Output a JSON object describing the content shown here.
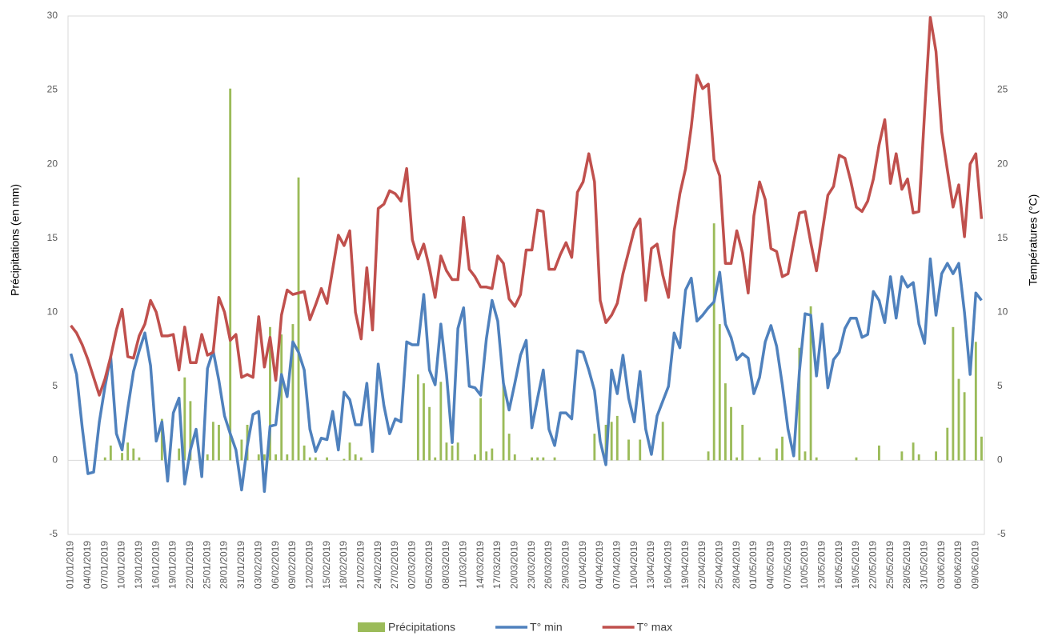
{
  "chart_data": {
    "type": "bar-line",
    "y_label": "Précipitations (en mm)",
    "y2_label": "Températures (°C)",
    "ylim": [
      -5,
      30
    ],
    "yticks": [
      -5,
      0,
      5,
      10,
      15,
      20,
      25,
      30
    ],
    "y2lim": [
      -5,
      30
    ],
    "y2ticks": [
      -5,
      0,
      5,
      10,
      15,
      20,
      25,
      30
    ],
    "categories": [
      "01/01/2019",
      null,
      null,
      "04/01/2019",
      null,
      null,
      "07/01/2019",
      null,
      null,
      "10/01/2019",
      null,
      null,
      "13/01/2019",
      null,
      null,
      "16/01/2019",
      null,
      null,
      "19/01/2019",
      null,
      null,
      "22/01/2019",
      null,
      null,
      "25/01/2019",
      null,
      null,
      "28/01/2019",
      null,
      null,
      "31/01/2019",
      null,
      null,
      "03/02/2019",
      null,
      null,
      "06/02/2019",
      null,
      null,
      "09/02/2019",
      null,
      null,
      "12/02/2019",
      null,
      null,
      "15/02/2019",
      null,
      null,
      "18/02/2019",
      null,
      null,
      "21/02/2019",
      null,
      null,
      "24/02/2019",
      null,
      null,
      "27/02/2019",
      null,
      null,
      "02/03/2019",
      null,
      null,
      "05/03/2019",
      null,
      null,
      "08/03/2019",
      null,
      null,
      "11/03/2019",
      null,
      null,
      "14/03/2019",
      null,
      null,
      "17/03/2019",
      null,
      null,
      "20/03/2019",
      null,
      null,
      "23/03/2019",
      null,
      null,
      "26/03/2019",
      null,
      null,
      "29/03/2019",
      null,
      null,
      "01/04/2019",
      null,
      null,
      "04/04/2019",
      null,
      null,
      "07/04/2019",
      null,
      null,
      "10/04/2019",
      null,
      null,
      "13/04/2019",
      null,
      null,
      "16/04/2019",
      null,
      null,
      "19/04/2019",
      null,
      null,
      "22/04/2019",
      null,
      null,
      "25/04/2019",
      null,
      null,
      "28/04/2019",
      null,
      null,
      "01/05/2019",
      null,
      null,
      "04/05/2019",
      null,
      null,
      "07/05/2019",
      null,
      null,
      "10/05/2019",
      null,
      null,
      "13/05/2019",
      null,
      null,
      "16/05/2019",
      null,
      null,
      "19/05/2019",
      null,
      null,
      "22/05/2019",
      null,
      null,
      "25/05/2019",
      null,
      null,
      "28/05/2019",
      null,
      null,
      "31/05/2019",
      null,
      null,
      "03/06/2019",
      null,
      null,
      "06/06/2019",
      null,
      null,
      "09/06/2019",
      null
    ],
    "series": [
      {
        "name": "Précipitations",
        "kind": "bar",
        "color": "#9bbb59",
        "values": [
          0,
          0,
          0,
          0,
          0,
          0,
          0.2,
          1.0,
          0,
          0.5,
          1.2,
          0.8,
          0.2,
          0,
          0,
          0,
          2.8,
          0,
          0,
          0.8,
          5.6,
          4.0,
          0,
          0,
          0.4,
          2.6,
          2.4,
          0,
          25.1,
          0,
          1.4,
          2.4,
          0,
          0.4,
          0.4,
          9.0,
          0.4,
          8.5,
          0.4,
          9.2,
          19.1,
          1.0,
          0.2,
          0.2,
          0,
          0.2,
          0,
          0,
          0.1,
          1.2,
          0.4,
          0.2,
          0,
          0,
          0,
          0,
          0,
          0,
          0,
          0,
          0,
          5.8,
          5.2,
          3.6,
          0.2,
          5.3,
          1.2,
          1.0,
          1.2,
          0,
          0,
          0.4,
          4.2,
          0.6,
          0.8,
          0,
          5.2,
          1.8,
          0.4,
          0,
          0,
          0.2,
          0.2,
          0.2,
          0,
          0.2,
          0,
          0,
          0,
          0,
          0,
          0,
          1.8,
          0,
          2.4,
          2.6,
          3.0,
          0,
          1.4,
          0,
          1.4,
          0,
          0,
          0,
          2.6,
          0,
          0,
          0,
          0,
          0,
          0,
          0,
          0.6,
          16.0,
          9.2,
          5.2,
          3.6,
          0.2,
          2.4,
          0,
          0,
          0.2,
          0,
          0,
          0.8,
          1.6,
          0,
          0,
          7.6,
          0.6,
          10.4,
          0.2,
          0,
          0,
          0,
          0,
          0,
          0,
          0.2,
          0,
          0,
          0,
          1.0,
          0,
          0,
          0,
          0.6,
          0,
          1.2,
          0.4,
          0,
          0,
          0.6,
          0,
          2.2,
          9.0,
          5.5,
          4.6,
          0,
          8.0,
          1.6
        ]
      },
      {
        "name": "T° min",
        "kind": "line",
        "axis": "y2",
        "color": "#4f81bd",
        "values": [
          7.2,
          5.8,
          2.2,
          -0.9,
          -0.8,
          2.6,
          5.0,
          7.0,
          1.8,
          0.7,
          3.5,
          6.0,
          7.4,
          8.6,
          6.4,
          1.3,
          2.6,
          -1.4,
          3.2,
          4.2,
          -1.6,
          0.7,
          2.1,
          -1.1,
          6.2,
          7.4,
          5.4,
          3.0,
          1.8,
          0.7,
          -2.0,
          1.0,
          3.1,
          3.3,
          -2.1,
          2.3,
          2.4,
          5.8,
          4.3,
          8.0,
          7.3,
          6.1,
          2.1,
          0.6,
          1.5,
          1.4,
          3.3,
          0.7,
          4.6,
          4.1,
          2.4,
          2.4,
          5.2,
          0.6,
          6.5,
          3.7,
          1.8,
          2.8,
          2.6,
          8.0,
          7.8,
          7.8,
          11.2,
          6.1,
          5.1,
          9.2,
          5.8,
          1.2,
          8.9,
          10.3,
          5.0,
          4.9,
          4.4,
          8.2,
          10.8,
          9.4,
          5.2,
          3.4,
          5.2,
          7.1,
          8.1,
          2.2,
          4.2,
          6.1,
          2.1,
          1.0,
          3.2,
          3.2,
          2.8,
          7.4,
          7.3,
          6.1,
          4.7,
          1.3,
          -0.3,
          6.1,
          4.5,
          7.1,
          4.2,
          2.6,
          6.0,
          2.1,
          0.4,
          3.0,
          4.0,
          5.0,
          8.6,
          7.6,
          11.5,
          12.3,
          9.4,
          9.8,
          10.3,
          10.7,
          12.7,
          9.2,
          8.3,
          6.8,
          7.2,
          6.9,
          4.5,
          5.6,
          8.0,
          9.1,
          7.7,
          5.1,
          2.1,
          0.3,
          6.0,
          9.9,
          9.8,
          5.7,
          9.2,
          4.9,
          6.8,
          7.3,
          8.9,
          9.6,
          9.6,
          8.3,
          8.5,
          11.4,
          10.8,
          9.3,
          12.4,
          9.6,
          12.4,
          11.7,
          12.0,
          9.2,
          7.9,
          13.6,
          9.8,
          12.6,
          13.3,
          12.6,
          13.3,
          10.0,
          5.8,
          11.3,
          10.8
        ]
      },
      {
        "name": "T° max",
        "kind": "line",
        "axis": "y2",
        "color": "#c0504d",
        "values": [
          9.1,
          8.6,
          7.8,
          6.8,
          5.6,
          4.4,
          5.5,
          7.0,
          8.8,
          10.2,
          7.0,
          6.9,
          8.4,
          9.2,
          10.8,
          10.0,
          8.4,
          8.4,
          8.5,
          6.1,
          9.0,
          6.6,
          6.6,
          8.5,
          7.1,
          7.3,
          11.0,
          10.0,
          8.1,
          8.5,
          5.6,
          5.8,
          5.6,
          9.7,
          6.3,
          8.3,
          5.4,
          9.8,
          11.5,
          11.2,
          11.3,
          11.4,
          9.5,
          10.5,
          11.6,
          10.6,
          12.9,
          15.2,
          14.5,
          15.5,
          10.0,
          8.2,
          13.0,
          8.8,
          17.0,
          17.3,
          18.2,
          18.0,
          17.5,
          19.7,
          14.9,
          13.6,
          14.6,
          13.0,
          11.0,
          13.8,
          12.8,
          12.2,
          12.2,
          16.4,
          12.9,
          12.4,
          11.7,
          11.7,
          11.6,
          13.8,
          13.3,
          10.9,
          10.4,
          11.2,
          14.2,
          14.2,
          16.9,
          16.8,
          12.9,
          12.9,
          13.9,
          14.7,
          13.7,
          18.1,
          18.8,
          20.7,
          18.8,
          10.8,
          9.3,
          9.8,
          10.6,
          12.6,
          14.1,
          15.6,
          16.3,
          10.8,
          14.3,
          14.6,
          12.5,
          11.0,
          15.5,
          18.0,
          19.7,
          22.5,
          26.0,
          25.1,
          25.4,
          20.3,
          19.2,
          13.3,
          13.3,
          15.5,
          14.0,
          11.3,
          16.5,
          18.8,
          17.6,
          14.3,
          14.1,
          12.4,
          12.6,
          14.7,
          16.7,
          16.8,
          14.7,
          12.8,
          15.4,
          17.9,
          18.5,
          20.6,
          20.4,
          18.9,
          17.1,
          16.8,
          17.5,
          19.0,
          21.3,
          23.0,
          18.7,
          20.7,
          18.3,
          19.0,
          16.7,
          16.8,
          23.5,
          29.9,
          27.6,
          22.2,
          19.6,
          17.1,
          18.6,
          15.1,
          20.0,
          20.7,
          16.3
        ]
      }
    ]
  }
}
